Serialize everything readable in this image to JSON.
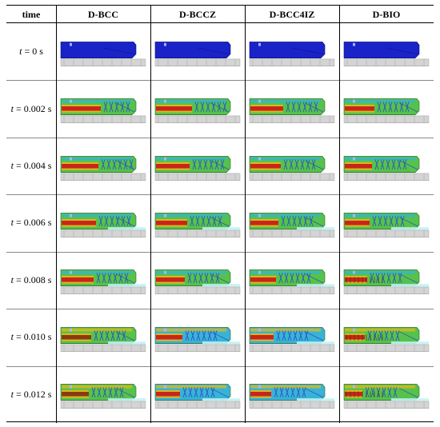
{
  "header": {
    "time": "time",
    "cols": [
      "D-BCC",
      "D-BCCZ",
      "D-BCC4IZ",
      "D-BIO"
    ]
  },
  "rows": [
    {
      "var": "t",
      "eq": "= 0 s",
      "stage": 0
    },
    {
      "var": "t",
      "eq": "= 0.002 s",
      "stage": 1
    },
    {
      "var": "t",
      "eq": "= 0.004 s",
      "stage": 2
    },
    {
      "var": "t",
      "eq": "= 0.006 s",
      "stage": 3
    },
    {
      "var": "t",
      "eq": "= 0.008 s",
      "stage": 4
    },
    {
      "var": "t",
      "eq": "= 0.010 s",
      "stage": 5
    },
    {
      "var": "t",
      "eq": "= 0.012 s",
      "stage": 6
    }
  ],
  "colors": {
    "initial_blue": "#1a23c8",
    "ground": "#d4d4d4",
    "hot": "#c8261a",
    "warm": "#e3b81b",
    "mid": "#56c24a",
    "cool": "#38b3d6",
    "cold": "#2a4fc8"
  }
}
